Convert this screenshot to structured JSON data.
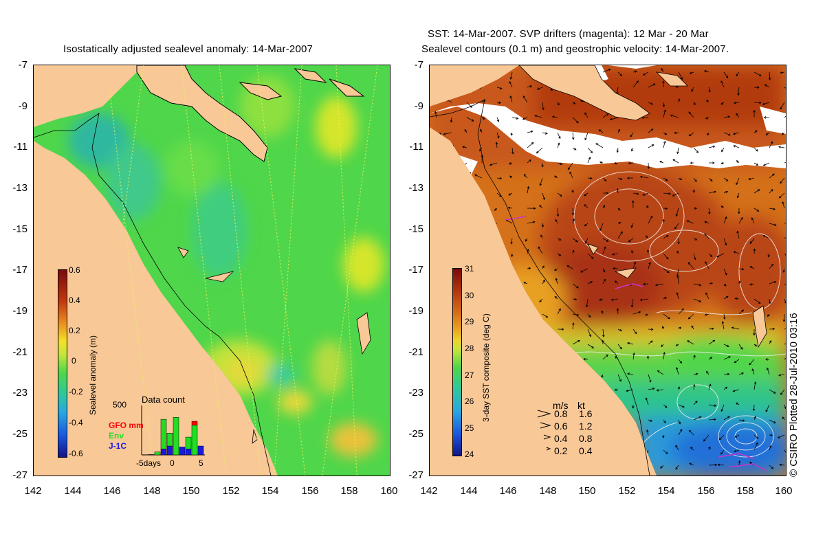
{
  "left_panel": {
    "title": "Isostatically adjusted sealevel anomaly: 14-Mar-2007",
    "colorbar": {
      "label": "Sealevel anomaly (m)",
      "ticks": [
        "0.6",
        "0.4",
        "0.2",
        "0",
        "-0.2",
        "-0.4",
        "-0.6"
      ]
    },
    "data_count": {
      "title": "Data count",
      "max_label": "500",
      "legend": [
        {
          "name": "GFO mm",
          "color": "#ff0000"
        },
        {
          "name": "Env",
          "color": "#22dd22"
        },
        {
          "name": "J-1C",
          "color": "#1a1adb"
        }
      ],
      "x_labels": [
        "-5days",
        "0",
        "5"
      ],
      "bars": [
        {
          "day": -5,
          "gfo": 0,
          "env": 0,
          "j1c": 2
        },
        {
          "day": -4,
          "gfo": 0,
          "env": 0,
          "j1c": 4
        },
        {
          "day": -3,
          "gfo": 0,
          "env": 30,
          "j1c": 0
        },
        {
          "day": -2,
          "gfo": 0,
          "env": 300,
          "j1c": 60
        },
        {
          "day": -1,
          "gfo": 0,
          "env": 130,
          "j1c": 90
        },
        {
          "day": 0,
          "gfo": 0,
          "env": 380,
          "j1c": 0
        },
        {
          "day": 1,
          "gfo": 0,
          "env": 0,
          "j1c": 80
        },
        {
          "day": 2,
          "gfo": 0,
          "env": 120,
          "j1c": 60
        },
        {
          "day": 3,
          "gfo": 40,
          "env": 300,
          "j1c": 0
        },
        {
          "day": 4,
          "gfo": 0,
          "env": 0,
          "j1c": 90
        }
      ]
    }
  },
  "right_panel": {
    "title_line1": "SST: 14-Mar-2007. SVP drifters (magenta): 12 Mar - 20 Mar",
    "title_line2": "Sealevel contours (0.1 m) and geostrophic velocity: 14-Mar-2007.",
    "colorbar": {
      "label": "3-day SST composite (deg C)",
      "ticks": [
        "31",
        "30",
        "29",
        "28",
        "27",
        "26",
        "25",
        "24"
      ]
    },
    "velocity_legend": {
      "header_ms": "m/s",
      "header_kt": "kt",
      "rows": [
        {
          "ms": "0.8",
          "kt": "1.6"
        },
        {
          "ms": "0.6",
          "kt": "1.2"
        },
        {
          "ms": "0.4",
          "kt": "0.8"
        },
        {
          "ms": "0.2",
          "kt": "0.4"
        }
      ]
    }
  },
  "axes": {
    "lat_ticks": [
      "-7",
      "-9",
      "-11",
      "-13",
      "-15",
      "-17",
      "-19",
      "-21",
      "-23",
      "-25",
      "-27"
    ],
    "lon_ticks": [
      "142",
      "144",
      "146",
      "148",
      "150",
      "152",
      "154",
      "156",
      "158",
      "160"
    ]
  },
  "credit": "© CSIRO Plotted 28-Jul-2010 03:16",
  "colors": {
    "land": "#f9c897",
    "ocean_green": "#4fd64a",
    "sst_warm": "#c4430f",
    "sst_cool": "#2a9ad8"
  }
}
